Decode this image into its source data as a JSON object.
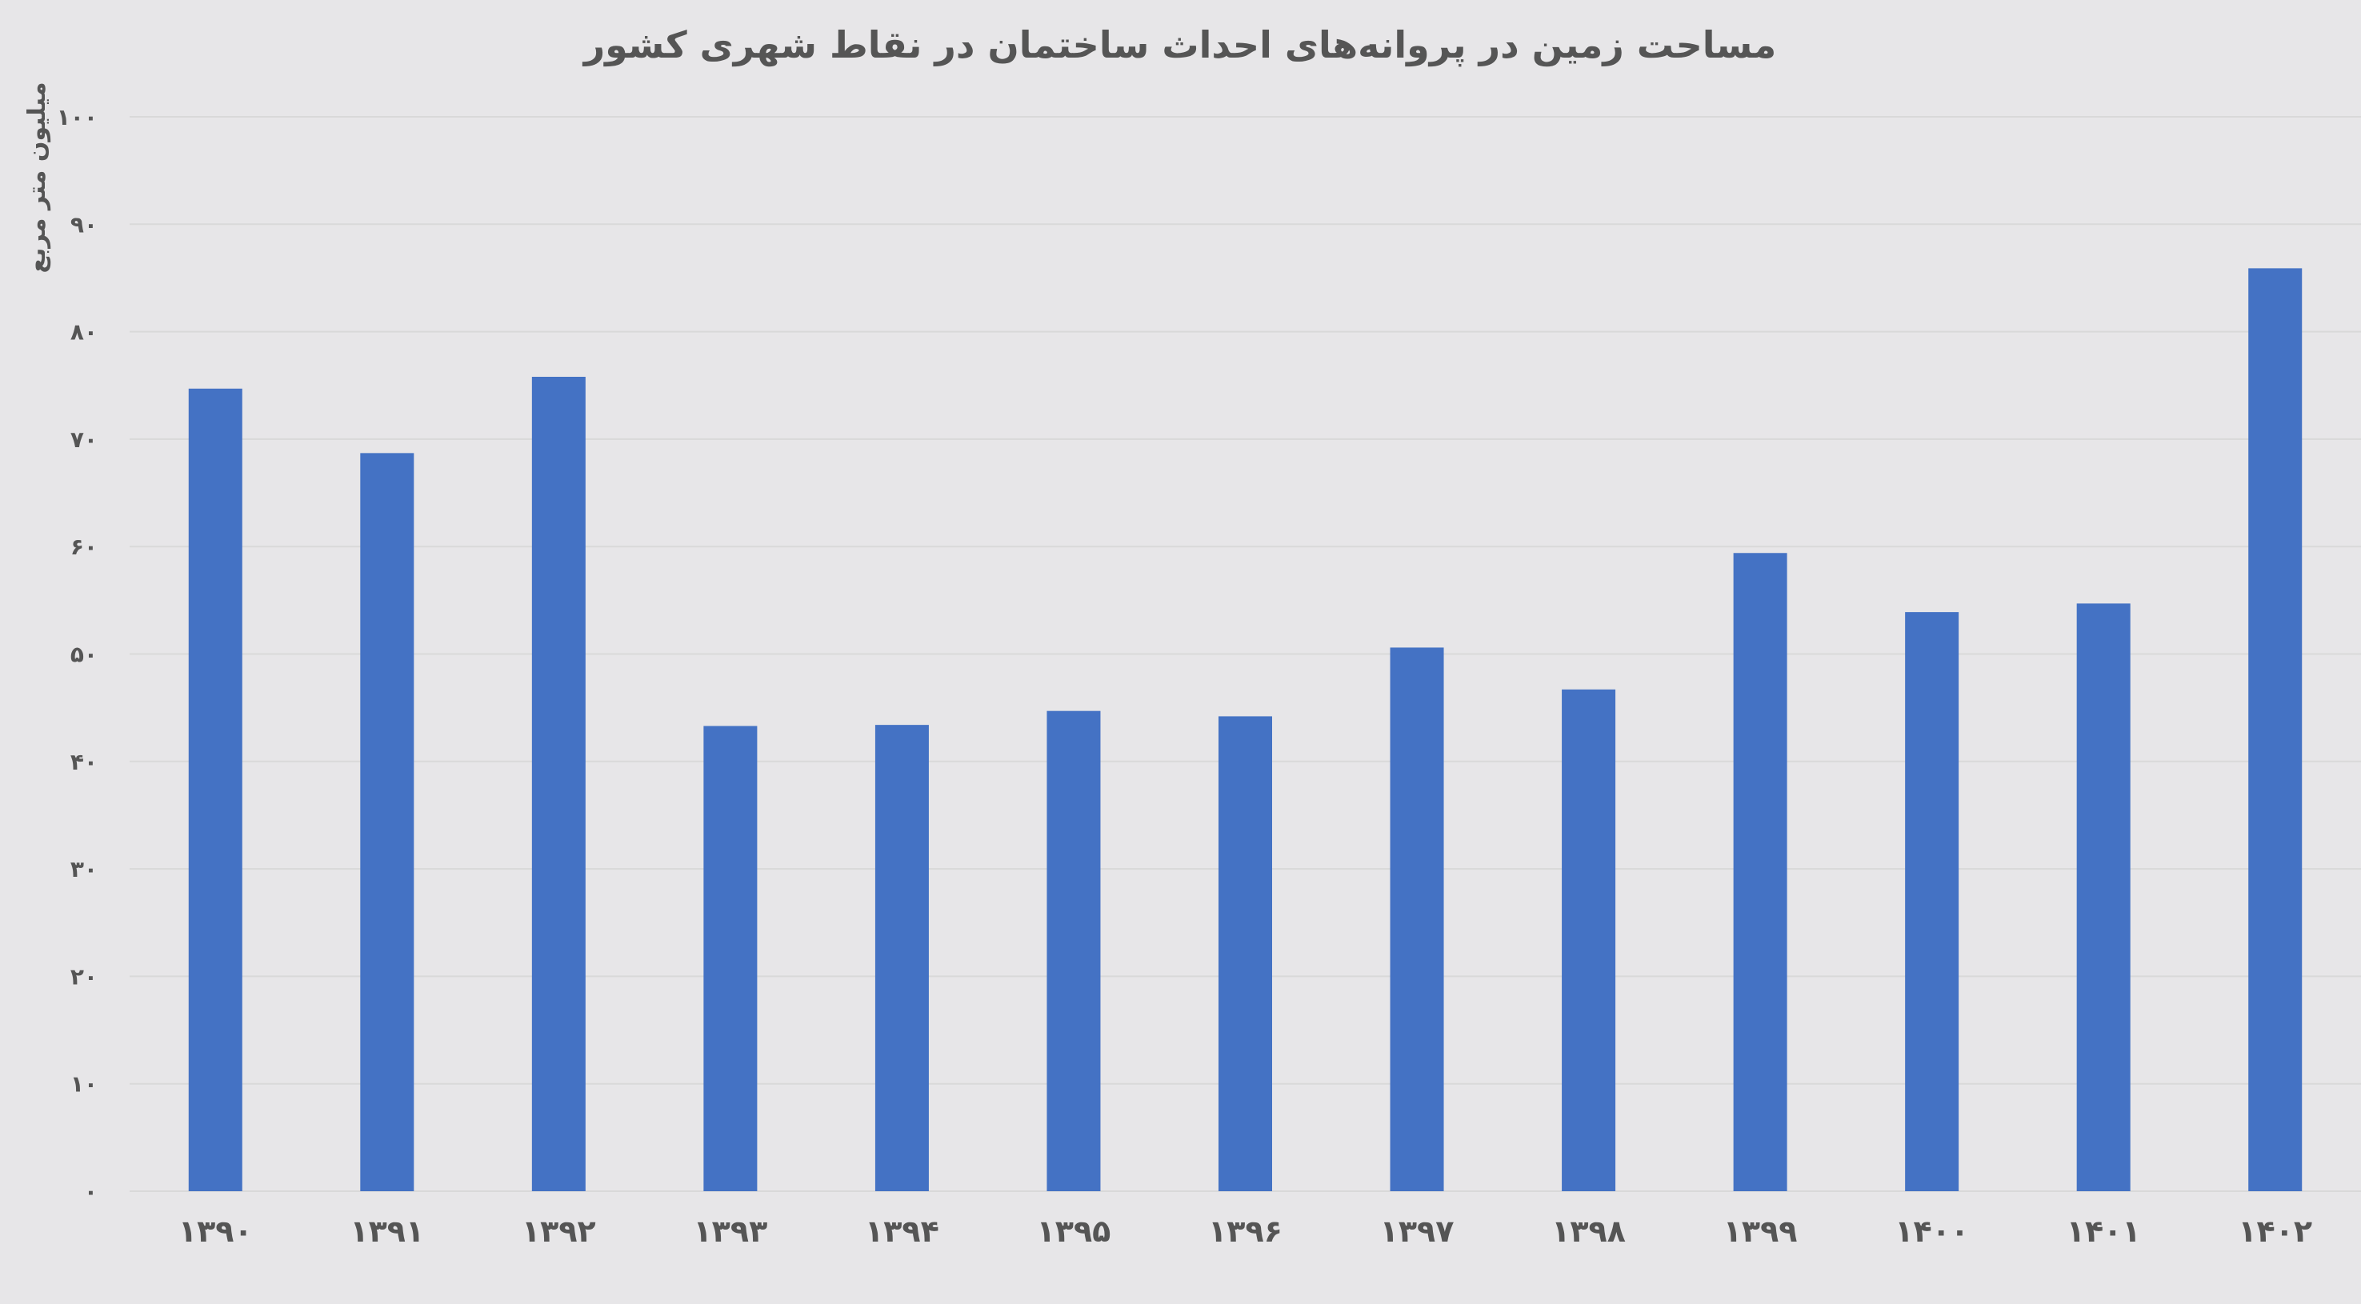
{
  "chart_data": {
    "type": "bar",
    "title": "مساحت زمین در پروانه‌های احداث ساختمان در نقاط شهری کشور",
    "ylabel": "میلیون متر مربع",
    "xlabel": "",
    "categories": [
      "۱۳۹۰",
      "۱۳۹۱",
      "۱۳۹۲",
      "۱۳۹۳",
      "۱۳۹۴",
      "۱۳۹۵",
      "۱۳۹۶",
      "۱۳۹۷",
      "۱۳۹۸",
      "۱۳۹۹",
      "۱۴۰۰",
      "۱۴۰۱",
      "۱۴۰۲"
    ],
    "values": [
      74.7,
      68.7,
      75.8,
      43.3,
      43.4,
      44.7,
      44.2,
      50.6,
      46.7,
      59.4,
      53.9,
      54.7,
      85.9
    ],
    "ylim": [
      0,
      100
    ],
    "yticks": [
      0,
      10,
      20,
      30,
      40,
      50,
      60,
      70,
      80,
      90,
      100
    ],
    "ytick_labels": [
      "۰",
      "۱۰",
      "۲۰",
      "۳۰",
      "۴۰",
      "۵۰",
      "۶۰",
      "۷۰",
      "۸۰",
      "۹۰",
      "۱۰۰"
    ],
    "grid": true,
    "legend": "none",
    "bar_color": "#4472c4",
    "grid_color": "#d9d9d9",
    "text_color": "#555555",
    "background_color": "#e7e6e8"
  }
}
